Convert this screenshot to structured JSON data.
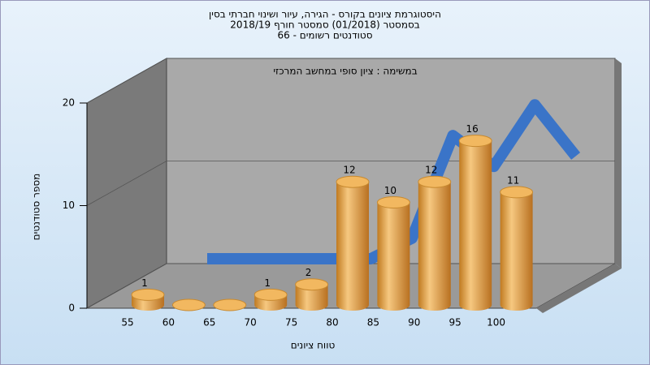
{
  "chart_data": {
    "type": "bar3d",
    "title": "היסטוגרמת ציונים בקורס - הגירה, עיור ושינוי חברתי בסין",
    "subtitle": "בסמסטר  (01/2018)  סמסטר חורף 2018/19",
    "subtitle2": "סטודנטים רשומים - 66",
    "annotation": "במשימה : ציון סופי במחשב המרכזי",
    "x_label": "טווח ציונים",
    "y_label": "מספר סטודנטים",
    "categories": [
      "55",
      "60",
      "65",
      "70",
      "75",
      "80",
      "85",
      "90",
      "95",
      "100"
    ],
    "series": [
      {
        "type": "bar",
        "color": "#e0a040",
        "values": [
          1,
          0,
          0,
          1,
          2,
          12,
          10,
          12,
          16,
          11
        ]
      },
      {
        "type": "line",
        "color": "#3a74c8",
        "values": [
          0,
          0,
          0,
          0,
          0,
          2,
          12,
          9,
          15,
          10
        ]
      }
    ],
    "ylim": [
      0,
      20
    ],
    "yticks": [
      0,
      10,
      20
    ],
    "grid": true
  }
}
